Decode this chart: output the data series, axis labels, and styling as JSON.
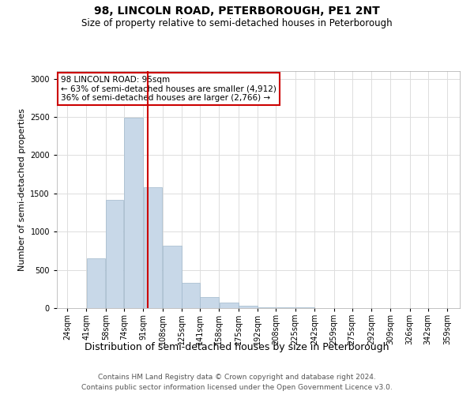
{
  "title": "98, LINCOLN ROAD, PETERBOROUGH, PE1 2NT",
  "subtitle": "Size of property relative to semi-detached houses in Peterborough",
  "xlabel": "Distribution of semi-detached houses by size in Peterborough",
  "ylabel": "Number of semi-detached properties",
  "footnote1": "Contains HM Land Registry data © Crown copyright and database right 2024.",
  "footnote2": "Contains public sector information licensed under the Open Government Licence v3.0.",
  "annotation_title": "98 LINCOLN ROAD: 95sqm",
  "annotation_line1": "← 63% of semi-detached houses are smaller (4,912)",
  "annotation_line2": "36% of semi-detached houses are larger (2,766) →",
  "property_size": 95,
  "bar_left_edges": [
    24,
    41,
    58,
    74,
    91,
    108,
    125,
    141,
    158,
    175,
    192,
    208,
    225,
    242,
    259,
    275,
    292,
    309,
    326,
    342
  ],
  "bar_widths": [
    17,
    17,
    16,
    17,
    17,
    17,
    16,
    17,
    17,
    17,
    16,
    17,
    17,
    17,
    16,
    17,
    17,
    17,
    16,
    17
  ],
  "bar_heights": [
    5,
    650,
    1420,
    2490,
    1580,
    820,
    330,
    145,
    70,
    30,
    15,
    10,
    8,
    5,
    4,
    3,
    2,
    1,
    0,
    0
  ],
  "bar_color": "#c8d8e8",
  "bar_edgecolor": "#a0b8cc",
  "redline_color": "#cc0000",
  "annotation_box_edgecolor": "#cc0000",
  "annotation_box_facecolor": "#ffffff",
  "xtick_labels": [
    "24sqm",
    "41sqm",
    "58sqm",
    "74sqm",
    "91sqm",
    "108sqm",
    "125sqm",
    "141sqm",
    "158sqm",
    "175sqm",
    "192sqm",
    "208sqm",
    "225sqm",
    "242sqm",
    "259sqm",
    "275sqm",
    "292sqm",
    "309sqm",
    "326sqm",
    "342sqm",
    "359sqm"
  ],
  "xtick_positions": [
    24,
    41,
    58,
    74,
    91,
    108,
    125,
    141,
    158,
    175,
    192,
    208,
    225,
    242,
    259,
    275,
    292,
    309,
    326,
    342,
    359
  ],
  "ylim": [
    0,
    3100
  ],
  "xlim": [
    15,
    370
  ],
  "grid_color": "#dddddd",
  "title_fontsize": 10,
  "subtitle_fontsize": 8.5,
  "xlabel_fontsize": 9,
  "ylabel_fontsize": 8,
  "tick_fontsize": 7,
  "annotation_fontsize": 7.5,
  "footnote_fontsize": 6.5
}
